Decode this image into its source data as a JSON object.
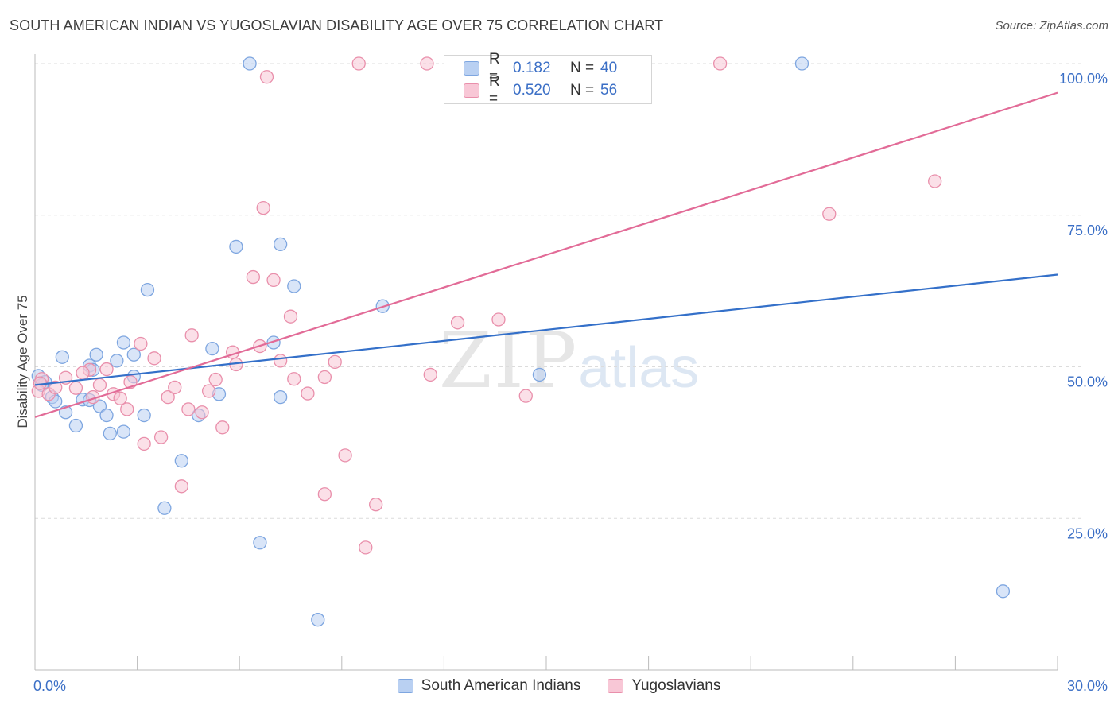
{
  "title": "SOUTH AMERICAN INDIAN VS YUGOSLAVIAN DISABILITY AGE OVER 75 CORRELATION CHART",
  "source": "Source: ZipAtlas.com",
  "watermark": {
    "zip": "ZIP",
    "atlas": "atlas"
  },
  "legend": {
    "rows": [
      {
        "r_label": "R =",
        "r_value": "0.182",
        "n_label": "N =",
        "n_value": "40"
      },
      {
        "r_label": "R =",
        "r_value": "0.520",
        "n_label": "N =",
        "n_value": "56"
      }
    ]
  },
  "bottom_legend": [
    "South American Indians",
    "Yugoslavians"
  ],
  "colors": {
    "blue_fill": "#b9d0f2",
    "blue_stroke": "#7ea6e0",
    "blue_line": "#3470c9",
    "pink_fill": "#f8c7d6",
    "pink_stroke": "#e98fab",
    "pink_line": "#e26b97",
    "tick_label": "#3b6fc6",
    "grid": "#dcdcdc"
  },
  "chart_data": {
    "type": "scatter",
    "title": "SOUTH AMERICAN INDIAN VS YUGOSLAVIAN DISABILITY AGE OVER 75 CORRELATION CHART",
    "xlabel": "",
    "ylabel": "Disability Age Over 75",
    "xlim": [
      0,
      30
    ],
    "ylim": [
      0,
      105
    ],
    "x_tick_labels": [
      "0.0%",
      "30.0%"
    ],
    "y_ticks": [
      25,
      50,
      75,
      100
    ],
    "y_tick_labels": [
      "25.0%",
      "50.0%",
      "75.0%",
      "100.0%"
    ],
    "grid": "horizontal dashed",
    "legend_position": "top-center",
    "series": [
      {
        "name": "South American Indians",
        "r": 0.182,
        "n": 40,
        "trend": {
          "x": [
            0,
            30
          ],
          "y": [
            47.0,
            65.2
          ]
        },
        "points": [
          [
            0.1,
            48.5
          ],
          [
            0.3,
            47.5
          ],
          [
            0.2,
            47
          ],
          [
            0.5,
            45
          ],
          [
            0.6,
            44.3
          ],
          [
            0.8,
            51.6
          ],
          [
            0.9,
            42.5
          ],
          [
            1.2,
            40.3
          ],
          [
            1.4,
            44.6
          ],
          [
            1.6,
            44.5
          ],
          [
            1.6,
            50.2
          ],
          [
            1.7,
            49.5
          ],
          [
            1.8,
            52
          ],
          [
            1.9,
            43.5
          ],
          [
            2.1,
            42
          ],
          [
            2.2,
            39
          ],
          [
            2.4,
            51
          ],
          [
            2.6,
            39.3
          ],
          [
            2.6,
            54
          ],
          [
            2.9,
            52
          ],
          [
            2.9,
            48.4
          ],
          [
            3.2,
            42
          ],
          [
            3.3,
            62.7
          ],
          [
            3.8,
            26.7
          ],
          [
            4.3,
            34.5
          ],
          [
            4.8,
            42
          ],
          [
            5.2,
            53
          ],
          [
            5.4,
            45.5
          ],
          [
            5.9,
            69.8
          ],
          [
            6.3,
            100
          ],
          [
            6.6,
            21
          ],
          [
            7.0,
            54
          ],
          [
            7.2,
            45
          ],
          [
            7.2,
            70.2
          ],
          [
            7.6,
            63.3
          ],
          [
            8.3,
            8.3
          ],
          [
            10.2,
            60
          ],
          [
            14.8,
            48.7
          ],
          [
            22.5,
            100
          ],
          [
            28.4,
            13
          ]
        ]
      },
      {
        "name": "Yugoslavians",
        "r": 0.52,
        "n": 56,
        "trend": {
          "x": [
            0,
            30
          ],
          "y": [
            41.7,
            95.2
          ]
        },
        "points": [
          [
            0.1,
            46
          ],
          [
            0.2,
            48
          ],
          [
            0.4,
            45.5
          ],
          [
            0.6,
            46.6
          ],
          [
            0.9,
            48.2
          ],
          [
            1.2,
            46.5
          ],
          [
            1.6,
            49.5
          ],
          [
            1.7,
            45
          ],
          [
            1.9,
            47
          ],
          [
            2.1,
            49.6
          ],
          [
            2.3,
            45.5
          ],
          [
            2.5,
            44.8
          ],
          [
            2.7,
            43
          ],
          [
            2.8,
            47.5
          ],
          [
            3.1,
            53.8
          ],
          [
            3.2,
            37.3
          ],
          [
            3.5,
            51.4
          ],
          [
            3.7,
            38.4
          ],
          [
            3.9,
            45
          ],
          [
            4.1,
            46.6
          ],
          [
            4.3,
            30.3
          ],
          [
            4.5,
            43
          ],
          [
            4.6,
            55.2
          ],
          [
            4.9,
            42.5
          ],
          [
            5.1,
            46
          ],
          [
            5.3,
            47.9
          ],
          [
            5.5,
            40
          ],
          [
            5.8,
            52.4
          ],
          [
            5.9,
            50.4
          ],
          [
            6.4,
            64.8
          ],
          [
            6.6,
            53.4
          ],
          [
            6.7,
            76.2
          ],
          [
            6.8,
            97.8
          ],
          [
            7.0,
            64.3
          ],
          [
            7.2,
            51
          ],
          [
            7.5,
            58.3
          ],
          [
            7.6,
            48
          ],
          [
            8.0,
            45.6
          ],
          [
            8.5,
            48.3
          ],
          [
            8.5,
            29
          ],
          [
            8.8,
            50.8
          ],
          [
            9.1,
            35.4
          ],
          [
            9.5,
            100
          ],
          [
            9.7,
            20.2
          ],
          [
            10.0,
            27.3
          ],
          [
            11.5,
            100
          ],
          [
            11.6,
            48.7
          ],
          [
            12.4,
            57.3
          ],
          [
            13.4,
            100
          ],
          [
            13.6,
            57.8
          ],
          [
            14.4,
            45.2
          ],
          [
            20.1,
            100
          ],
          [
            23.3,
            75.2
          ],
          [
            26.4,
            80.6
          ],
          [
            0.15,
            47.3
          ],
          [
            1.4,
            49
          ]
        ]
      }
    ]
  }
}
